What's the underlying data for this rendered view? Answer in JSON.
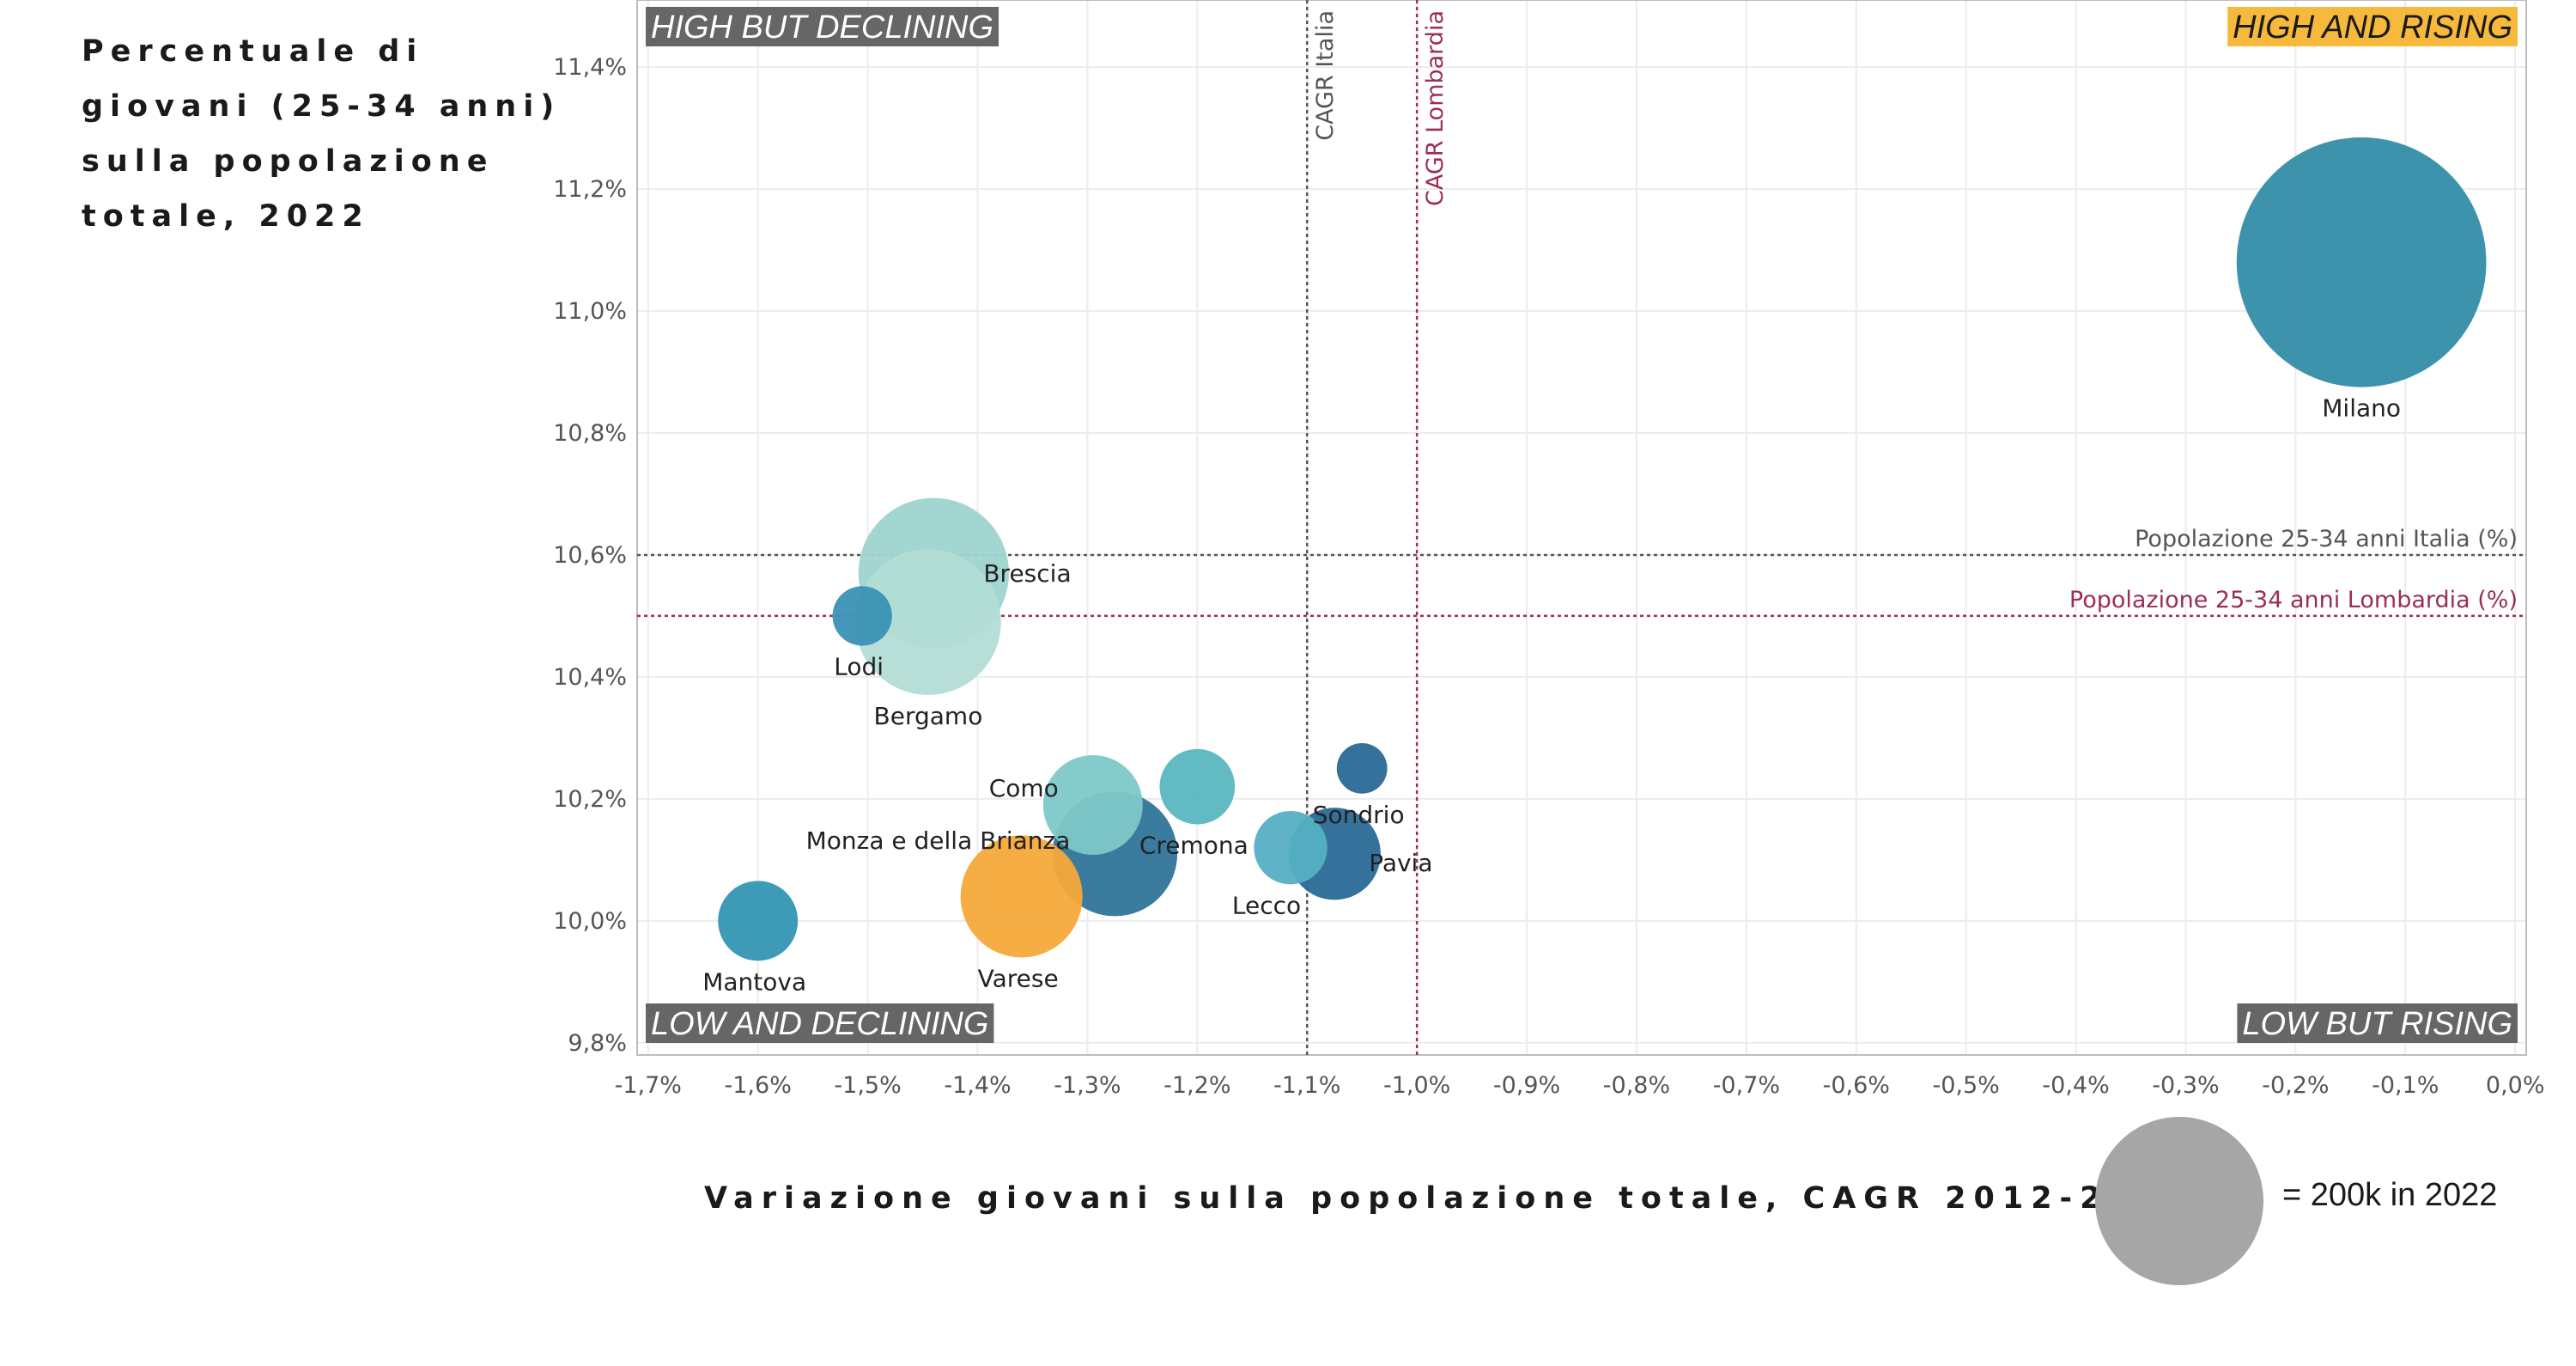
{
  "chart_data": {
    "type": "scatter",
    "title": "",
    "ylabel": "Percentuale di giovani (25-34 anni) sulla popolazione totale, 2022",
    "xlabel": "Variazione giovani sulla popolazione totale, CAGR 2012-2022",
    "xlim": [
      -1.71,
      0.01
    ],
    "ylim": [
      9.78,
      11.51
    ],
    "x_ticks": [
      -1.7,
      -1.6,
      -1.5,
      -1.4,
      -1.3,
      -1.2,
      -1.1,
      -1.0,
      -0.9,
      -0.8,
      -0.7,
      -0.6,
      -0.5,
      -0.4,
      -0.3,
      -0.2,
      -0.1,
      0.0
    ],
    "x_tick_labels": [
      "-1,7%",
      "-1,6%",
      "-1,5%",
      "-1,4%",
      "-1,3%",
      "-1,2%",
      "-1,1%",
      "-1,0%",
      "-0,9%",
      "-0,8%",
      "-0,7%",
      "-0,6%",
      "-0,5%",
      "-0,4%",
      "-0,3%",
      "-0,2%",
      "-0,1%",
      "0,0%"
    ],
    "y_ticks": [
      9.8,
      10.0,
      10.2,
      10.4,
      10.6,
      10.8,
      11.0,
      11.2,
      11.4
    ],
    "y_tick_labels": [
      "9,8%",
      "10,0%",
      "10,2%",
      "10,4%",
      "10,6%",
      "10,8%",
      "11,0%",
      "11,2%",
      "11,4%"
    ],
    "grid": true,
    "points": [
      {
        "label": "Milano",
        "x": -0.14,
        "y": 11.08,
        "size_k": 440,
        "color": "#348da8"
      },
      {
        "label": "Brescia",
        "x": -1.44,
        "y": 10.57,
        "size_k": 160,
        "color": "#9fd4cf"
      },
      {
        "label": "Bergamo",
        "x": -1.445,
        "y": 10.49,
        "size_k": 150,
        "color": "#b3ddd5"
      },
      {
        "label": "Lodi",
        "x": -1.505,
        "y": 10.5,
        "size_k": 25,
        "color": "#3a91b4"
      },
      {
        "label": "Como",
        "x": -1.295,
        "y": 10.19,
        "size_k": 70,
        "color": "#7ec8c8"
      },
      {
        "label": "Cremona",
        "x": -1.2,
        "y": 10.22,
        "size_k": 40,
        "color": "#5ab6bf"
      },
      {
        "label": "Monza e della Brianza",
        "x": -1.275,
        "y": 10.11,
        "size_k": 110,
        "color": "#2f7499"
      },
      {
        "label": "Varese",
        "x": -1.36,
        "y": 10.04,
        "size_k": 105,
        "color": "#f4a93a"
      },
      {
        "label": "Mantova",
        "x": -1.6,
        "y": 10.0,
        "size_k": 45,
        "color": "#3396b4"
      },
      {
        "label": "Lecco",
        "x": -1.115,
        "y": 10.12,
        "size_k": 38,
        "color": "#55b0c3"
      },
      {
        "label": "Sondrio",
        "x": -1.05,
        "y": 10.25,
        "size_k": 18,
        "color": "#2a6a96"
      },
      {
        "label": "Pavia",
        "x": -1.075,
        "y": 10.11,
        "size_k": 60,
        "color": "#2a6a96"
      }
    ],
    "reference_lines": [
      {
        "label": "CAGR Italia",
        "axis": "x",
        "value": -1.1,
        "color": "#555555"
      },
      {
        "label": "CAGR Lombardia",
        "axis": "x",
        "value": -1.0,
        "color": "#9b2d58"
      },
      {
        "label": "Popolazione 25-34 anni Italia (%)",
        "axis": "y",
        "value": 10.6,
        "color": "#555555"
      },
      {
        "label": "Popolazione 25-34 anni Lombardia (%)",
        "axis": "y",
        "value": 10.5,
        "color": "#9b2d58"
      }
    ],
    "quadrants": [
      {
        "label": "HIGH BUT DECLINING",
        "position": "top-left",
        "background": "#666666",
        "color": "#ffffff"
      },
      {
        "label": "HIGH AND RISING",
        "position": "top-right",
        "background": "#f6b93b",
        "color": "#1a1a1a"
      },
      {
        "label": "LOW AND DECLINING",
        "position": "bottom-left",
        "background": "#666666",
        "color": "#ffffff"
      },
      {
        "label": "LOW BUT RISING",
        "position": "bottom-right",
        "background": "#666666",
        "color": "#ffffff"
      }
    ],
    "size_legend": {
      "value_k": 200,
      "label": "= 200k in 2022",
      "color": "#a6a6a6"
    }
  }
}
